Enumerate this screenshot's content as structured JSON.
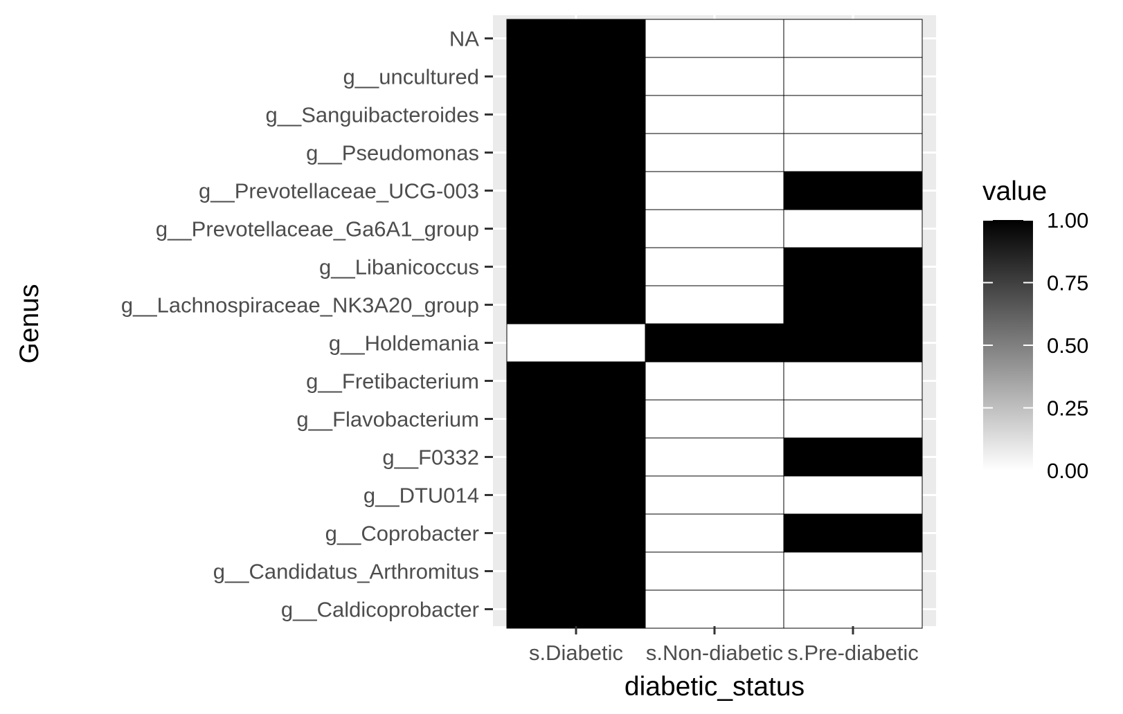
{
  "chart_data": {
    "type": "heatmap",
    "xlabel": "diabetic_status",
    "ylabel": "Genus",
    "x_categories": [
      "s.Diabetic",
      "s.Non-diabetic",
      "s.Pre-diabetic"
    ],
    "y_categories": [
      "NA",
      "g__uncultured",
      "g__Sanguibacteroides",
      "g__Pseudomonas",
      "g__Prevotellaceae_UCG-003",
      "g__Prevotellaceae_Ga6A1_group",
      "g__Libanicoccus",
      "g__Lachnospiraceae_NK3A20_group",
      "g__Holdemania",
      "g__Fretibacterium",
      "g__Flavobacterium",
      "g__F0332",
      "g__DTU014",
      "g__Coprobacter",
      "g__Candidatus_Arthromitus",
      "g__Caldicoprobacter"
    ],
    "values": [
      [
        1,
        0,
        0
      ],
      [
        1,
        0,
        0
      ],
      [
        1,
        0,
        0
      ],
      [
        1,
        0,
        0
      ],
      [
        1,
        0,
        1
      ],
      [
        1,
        0,
        0
      ],
      [
        1,
        0,
        1
      ],
      [
        1,
        0,
        1
      ],
      [
        0,
        1,
        1
      ],
      [
        1,
        0,
        0
      ],
      [
        1,
        0,
        0
      ],
      [
        1,
        0,
        1
      ],
      [
        1,
        0,
        0
      ],
      [
        1,
        0,
        1
      ],
      [
        1,
        0,
        0
      ],
      [
        1,
        0,
        0
      ]
    ],
    "colorscale": [
      "#ffffff",
      "#000000"
    ],
    "value_range": [
      0,
      1
    ],
    "legend": {
      "title": "value",
      "position": "right",
      "ticks": [
        "1.00",
        "0.75",
        "0.50",
        "0.25",
        "0.00"
      ]
    },
    "panel_background": "#ebebeb",
    "grid": true
  }
}
